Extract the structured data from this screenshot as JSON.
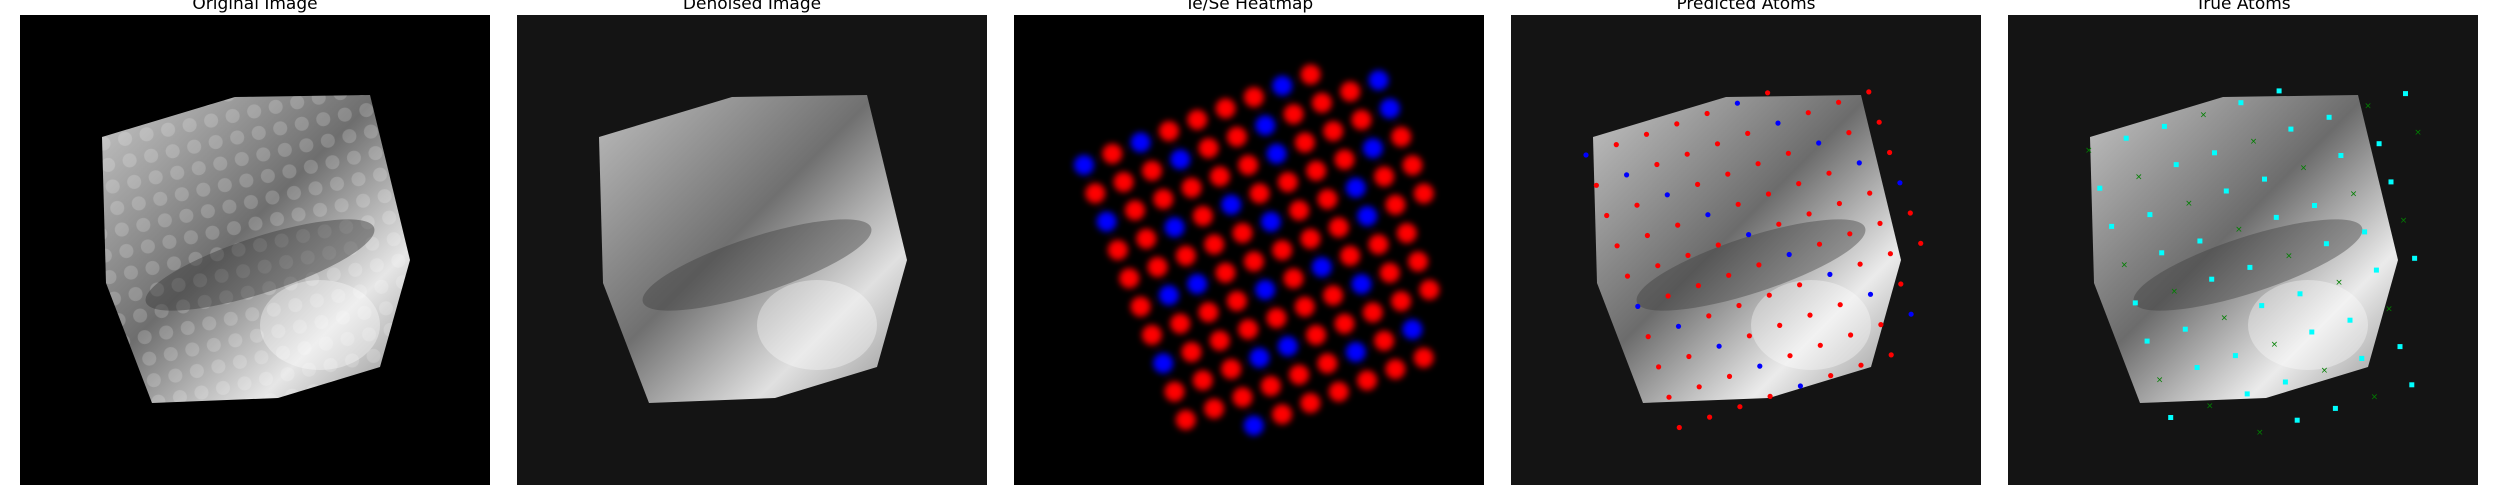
{
  "panels": [
    {
      "title": "Original Image"
    },
    {
      "title": "Denoised Image"
    },
    {
      "title": "Te/Se Heatmap"
    },
    {
      "title": "Predicted Atoms"
    },
    {
      "title": "True Atoms"
    }
  ],
  "colors": {
    "background": "#000000",
    "te": "#ff0000",
    "se": "#0000ff",
    "true_te": "#00ffff",
    "true_se": "#008000"
  },
  "legend_semantics": {
    "heatmap_red": "Te",
    "heatmap_blue": "Se"
  }
}
